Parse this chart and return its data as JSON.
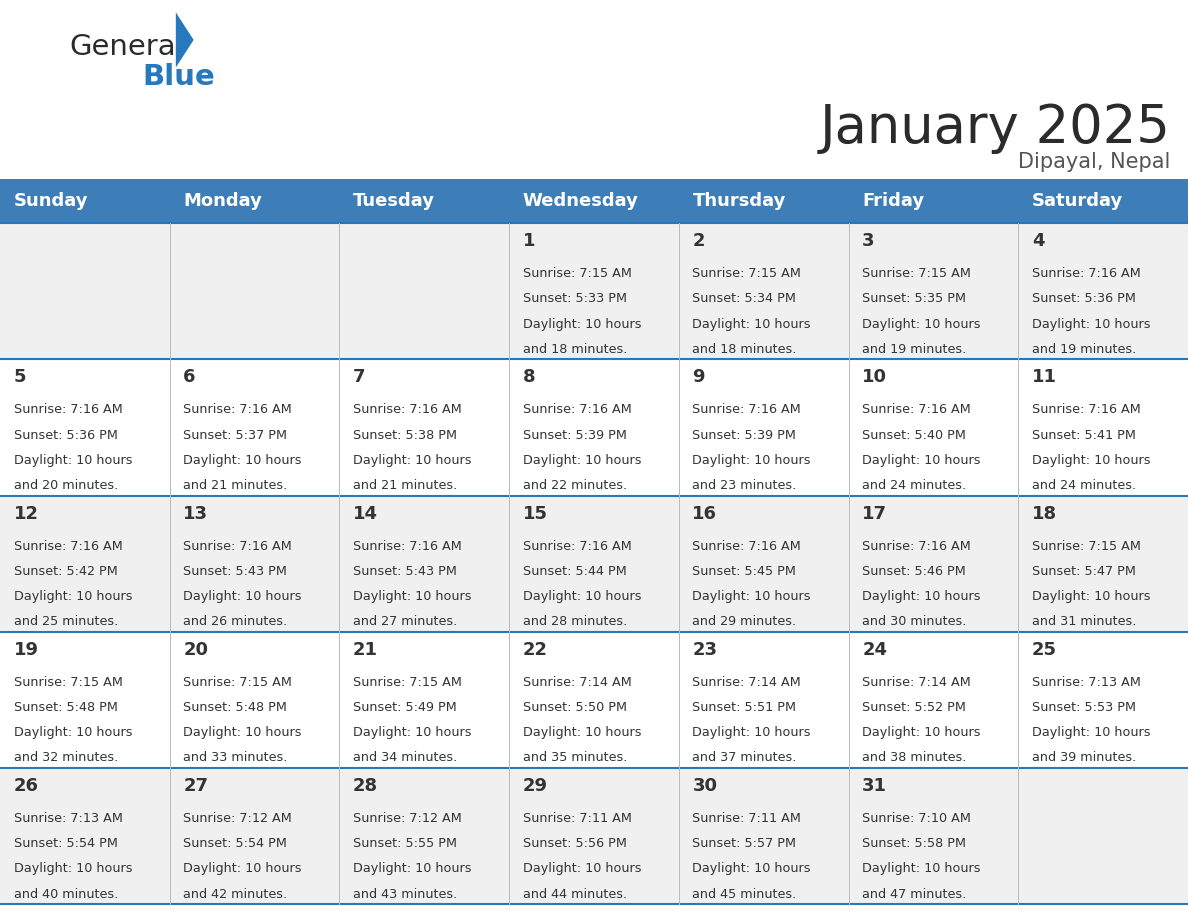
{
  "title": "January 2025",
  "subtitle": "Dipayal, Nepal",
  "header_color": "#3D7DB8",
  "header_text_color": "#FFFFFF",
  "cell_bg_odd": "#F0F0F0",
  "cell_bg_even": "#FFFFFF",
  "days_of_week": [
    "Sunday",
    "Monday",
    "Tuesday",
    "Wednesday",
    "Thursday",
    "Friday",
    "Saturday"
  ],
  "calendar_data": [
    [
      null,
      null,
      null,
      {
        "day": 1,
        "sunrise": "7:15 AM",
        "sunset": "5:33 PM",
        "daylight_hours": 10,
        "daylight_minutes": 18
      },
      {
        "day": 2,
        "sunrise": "7:15 AM",
        "sunset": "5:34 PM",
        "daylight_hours": 10,
        "daylight_minutes": 18
      },
      {
        "day": 3,
        "sunrise": "7:15 AM",
        "sunset": "5:35 PM",
        "daylight_hours": 10,
        "daylight_minutes": 19
      },
      {
        "day": 4,
        "sunrise": "7:16 AM",
        "sunset": "5:36 PM",
        "daylight_hours": 10,
        "daylight_minutes": 19
      }
    ],
    [
      {
        "day": 5,
        "sunrise": "7:16 AM",
        "sunset": "5:36 PM",
        "daylight_hours": 10,
        "daylight_minutes": 20
      },
      {
        "day": 6,
        "sunrise": "7:16 AM",
        "sunset": "5:37 PM",
        "daylight_hours": 10,
        "daylight_minutes": 21
      },
      {
        "day": 7,
        "sunrise": "7:16 AM",
        "sunset": "5:38 PM",
        "daylight_hours": 10,
        "daylight_minutes": 21
      },
      {
        "day": 8,
        "sunrise": "7:16 AM",
        "sunset": "5:39 PM",
        "daylight_hours": 10,
        "daylight_minutes": 22
      },
      {
        "day": 9,
        "sunrise": "7:16 AM",
        "sunset": "5:39 PM",
        "daylight_hours": 10,
        "daylight_minutes": 23
      },
      {
        "day": 10,
        "sunrise": "7:16 AM",
        "sunset": "5:40 PM",
        "daylight_hours": 10,
        "daylight_minutes": 24
      },
      {
        "day": 11,
        "sunrise": "7:16 AM",
        "sunset": "5:41 PM",
        "daylight_hours": 10,
        "daylight_minutes": 24
      }
    ],
    [
      {
        "day": 12,
        "sunrise": "7:16 AM",
        "sunset": "5:42 PM",
        "daylight_hours": 10,
        "daylight_minutes": 25
      },
      {
        "day": 13,
        "sunrise": "7:16 AM",
        "sunset": "5:43 PM",
        "daylight_hours": 10,
        "daylight_minutes": 26
      },
      {
        "day": 14,
        "sunrise": "7:16 AM",
        "sunset": "5:43 PM",
        "daylight_hours": 10,
        "daylight_minutes": 27
      },
      {
        "day": 15,
        "sunrise": "7:16 AM",
        "sunset": "5:44 PM",
        "daylight_hours": 10,
        "daylight_minutes": 28
      },
      {
        "day": 16,
        "sunrise": "7:16 AM",
        "sunset": "5:45 PM",
        "daylight_hours": 10,
        "daylight_minutes": 29
      },
      {
        "day": 17,
        "sunrise": "7:16 AM",
        "sunset": "5:46 PM",
        "daylight_hours": 10,
        "daylight_minutes": 30
      },
      {
        "day": 18,
        "sunrise": "7:15 AM",
        "sunset": "5:47 PM",
        "daylight_hours": 10,
        "daylight_minutes": 31
      }
    ],
    [
      {
        "day": 19,
        "sunrise": "7:15 AM",
        "sunset": "5:48 PM",
        "daylight_hours": 10,
        "daylight_minutes": 32
      },
      {
        "day": 20,
        "sunrise": "7:15 AM",
        "sunset": "5:48 PM",
        "daylight_hours": 10,
        "daylight_minutes": 33
      },
      {
        "day": 21,
        "sunrise": "7:15 AM",
        "sunset": "5:49 PM",
        "daylight_hours": 10,
        "daylight_minutes": 34
      },
      {
        "day": 22,
        "sunrise": "7:14 AM",
        "sunset": "5:50 PM",
        "daylight_hours": 10,
        "daylight_minutes": 35
      },
      {
        "day": 23,
        "sunrise": "7:14 AM",
        "sunset": "5:51 PM",
        "daylight_hours": 10,
        "daylight_minutes": 37
      },
      {
        "day": 24,
        "sunrise": "7:14 AM",
        "sunset": "5:52 PM",
        "daylight_hours": 10,
        "daylight_minutes": 38
      },
      {
        "day": 25,
        "sunrise": "7:13 AM",
        "sunset": "5:53 PM",
        "daylight_hours": 10,
        "daylight_minutes": 39
      }
    ],
    [
      {
        "day": 26,
        "sunrise": "7:13 AM",
        "sunset": "5:54 PM",
        "daylight_hours": 10,
        "daylight_minutes": 40
      },
      {
        "day": 27,
        "sunrise": "7:12 AM",
        "sunset": "5:54 PM",
        "daylight_hours": 10,
        "daylight_minutes": 42
      },
      {
        "day": 28,
        "sunrise": "7:12 AM",
        "sunset": "5:55 PM",
        "daylight_hours": 10,
        "daylight_minutes": 43
      },
      {
        "day": 29,
        "sunrise": "7:11 AM",
        "sunset": "5:56 PM",
        "daylight_hours": 10,
        "daylight_minutes": 44
      },
      {
        "day": 30,
        "sunrise": "7:11 AM",
        "sunset": "5:57 PM",
        "daylight_hours": 10,
        "daylight_minutes": 45
      },
      {
        "day": 31,
        "sunrise": "7:10 AM",
        "sunset": "5:58 PM",
        "daylight_hours": 10,
        "daylight_minutes": 47
      },
      null
    ]
  ],
  "logo_general_color": "#2B2B2B",
  "logo_blue_color": "#2779BD",
  "logo_triangle_color": "#2779BD",
  "title_color": "#2B2B2B",
  "subtitle_color": "#555555",
  "day_number_color": "#333333",
  "cell_text_color": "#333333",
  "grid_line_color": "#BBBBBB",
  "header_border_color": "#2779BD"
}
